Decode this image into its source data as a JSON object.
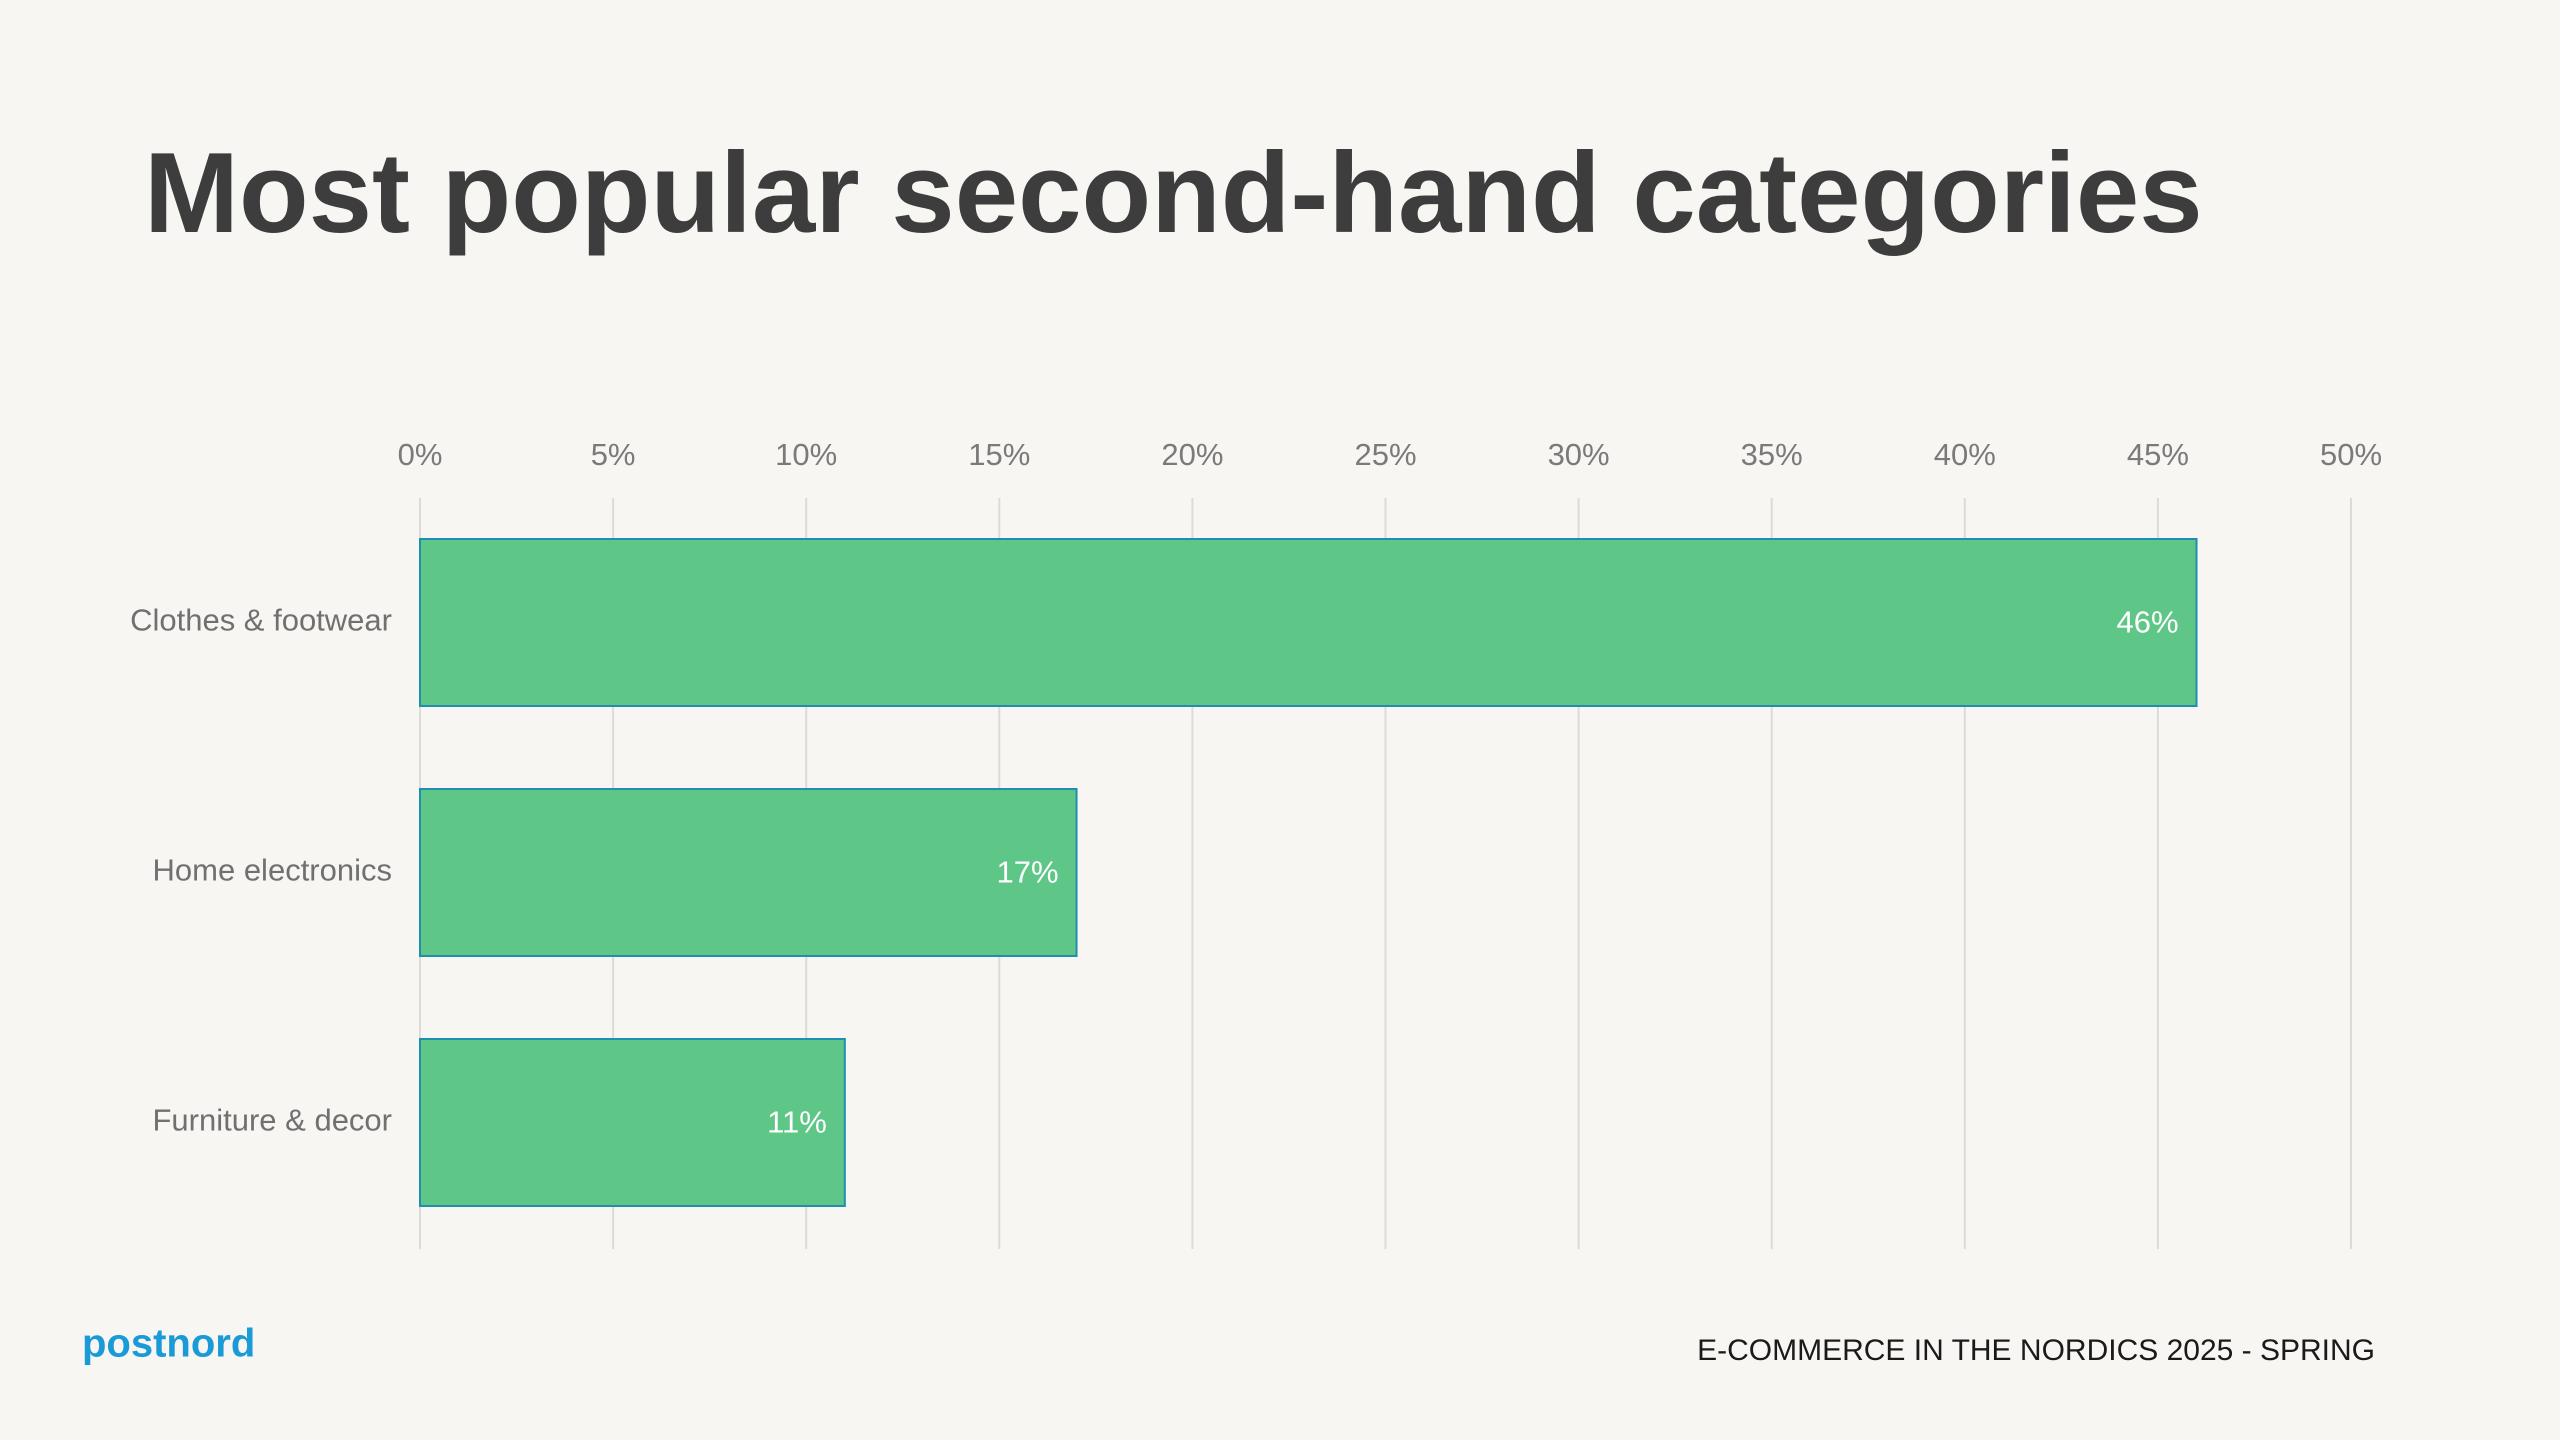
{
  "chart_data": {
    "type": "bar",
    "title": "Most popular second-hand categories",
    "categories": [
      "Clothes & footwear",
      "Home electronics",
      "Furniture & decor"
    ],
    "values": [
      46,
      17,
      11
    ],
    "value_labels": [
      "46%",
      "17%",
      "11%"
    ],
    "color": "#5ec787",
    "xlim": [
      0,
      50
    ],
    "xticks": [
      {
        "value": 0,
        "label": "0%"
      },
      {
        "value": 5,
        "label": "5%"
      },
      {
        "value": 10,
        "label": "10%"
      },
      {
        "value": 15,
        "label": "15%"
      },
      {
        "value": 20,
        "label": "20%"
      },
      {
        "value": 25,
        "label": "25%"
      },
      {
        "value": 30,
        "label": "30%"
      },
      {
        "value": 35,
        "label": "35%"
      },
      {
        "value": 40,
        "label": "40%"
      },
      {
        "value": 45,
        "label": "45%"
      },
      {
        "value": 50,
        "label": "50%"
      }
    ],
    "grid": true
  },
  "brand": "postnord",
  "footer": "E-COMMERCE IN THE NORDICS 2025 - SPRING"
}
